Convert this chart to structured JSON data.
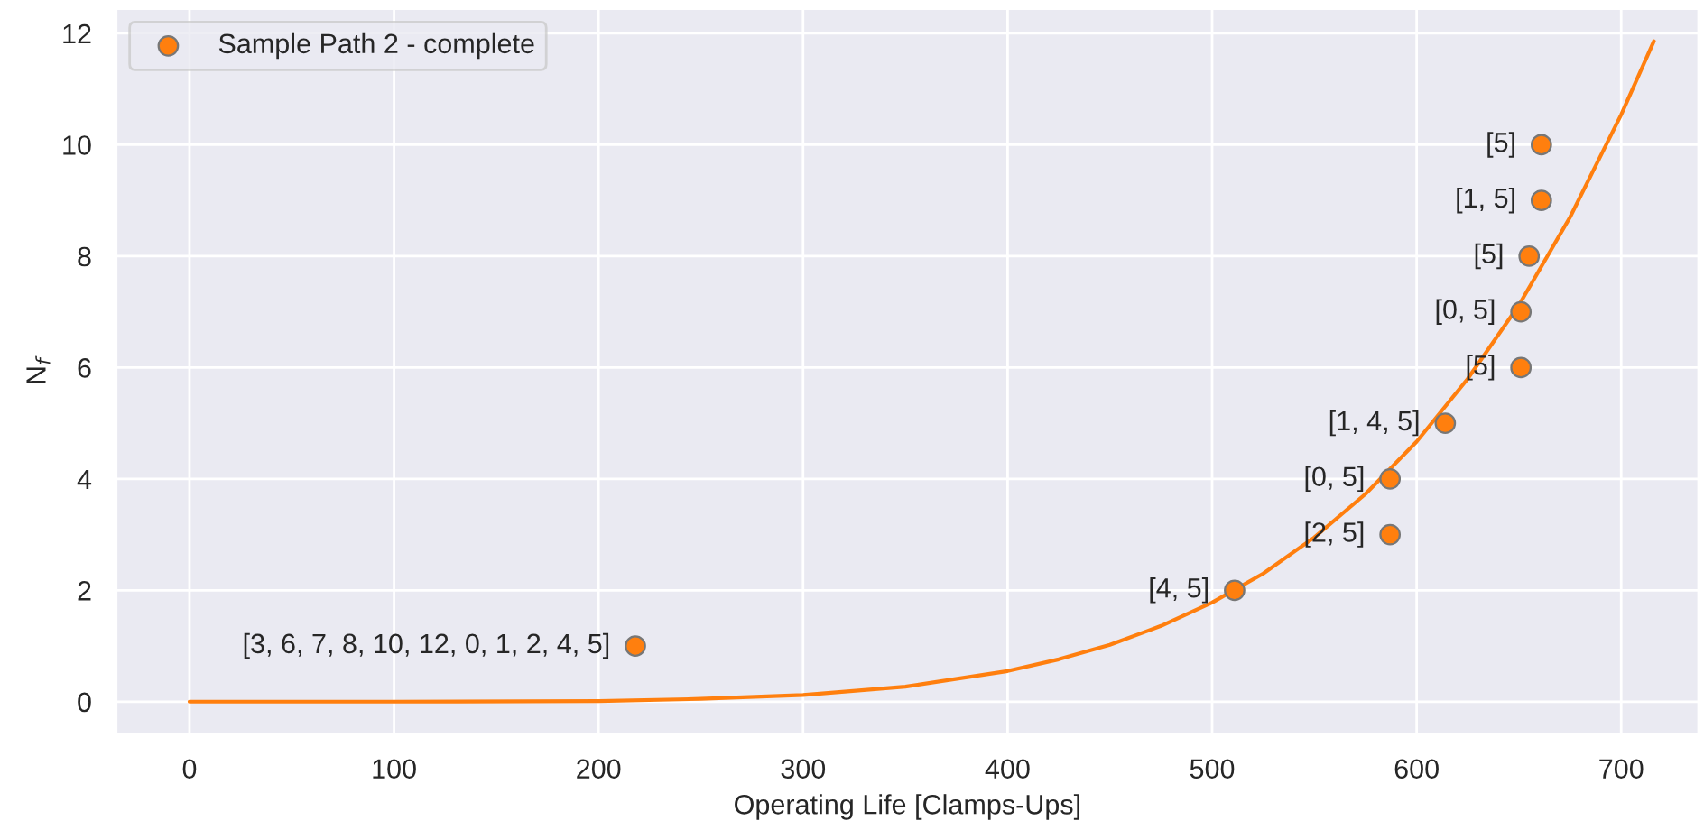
{
  "chart_data": {
    "type": "scatter",
    "xlabel": "Operating Life [Clamps-Ups]",
    "ylabel": "N$_{f}$",
    "xlim": [
      -36,
      738
    ],
    "ylim": [
      -0.59,
      12.45
    ],
    "xticks": [
      0,
      100,
      200,
      300,
      400,
      500,
      600,
      700
    ],
    "yticks": [
      0,
      2,
      4,
      6,
      8,
      10,
      12
    ],
    "grid": true,
    "legend": "top left",
    "series": [
      {
        "name": "Sample Path 2 - complete",
        "marker": "circle",
        "color": "#ff7f0e",
        "x": [
          218,
          511,
          587,
          587,
          614,
          651,
          651,
          655,
          661,
          661
        ],
        "values": [
          1,
          2,
          3,
          4,
          5,
          6,
          7,
          8,
          9,
          10
        ]
      },
      {
        "type": "line",
        "marker": "none",
        "color": "#ff7f0e",
        "x": [
          0,
          100,
          200,
          250,
          300,
          350,
          400,
          425,
          450,
          475,
          500,
          525,
          550,
          575,
          600,
          625,
          650,
          675,
          700,
          716
        ],
        "values": [
          0,
          0,
          0.01,
          0.05,
          0.12,
          0.27,
          0.55,
          0.76,
          1.02,
          1.36,
          1.78,
          2.3,
          2.95,
          3.73,
          4.67,
          5.8,
          7.12,
          8.7,
          10.54,
          11.86
        ]
      }
    ],
    "annotations": [
      {
        "text": "[3, 6, 7, 8, 10, 12, 0, 1, 2, 4, 5]",
        "x": 218,
        "y": 1
      },
      {
        "text": "[4, 5]",
        "x": 511,
        "y": 2
      },
      {
        "text": "[2, 5]",
        "x": 587,
        "y": 3
      },
      {
        "text": "[0, 5]",
        "x": 587,
        "y": 4
      },
      {
        "text": "[1, 4, 5]",
        "x": 614,
        "y": 5
      },
      {
        "text": "[5]",
        "x": 651,
        "y": 6
      },
      {
        "text": "[0, 5]",
        "x": 651,
        "y": 7
      },
      {
        "text": "[5]",
        "x": 655,
        "y": 8
      },
      {
        "text": "[1, 5]",
        "x": 661,
        "y": 9
      },
      {
        "text": "[5]",
        "x": 661,
        "y": 10
      }
    ]
  }
}
